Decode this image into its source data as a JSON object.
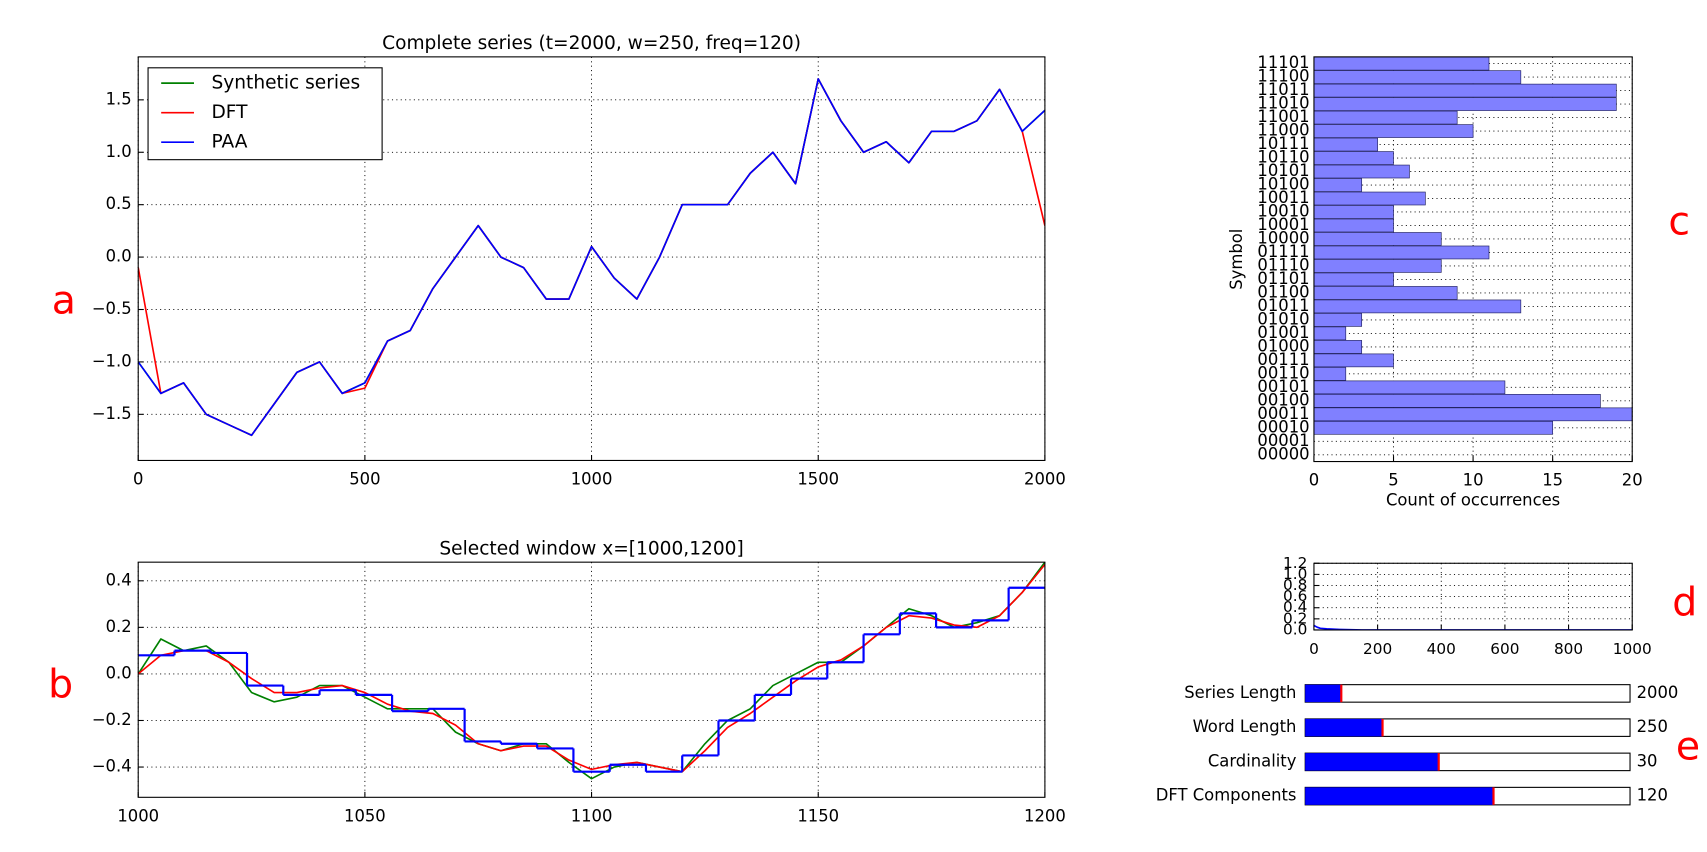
{
  "chart_data": [
    {
      "type": "line",
      "title": "Complete series (t=2000, w=250, freq=120)",
      "x": [
        0,
        50,
        100,
        150,
        200,
        250,
        300,
        350,
        400,
        450,
        500,
        550,
        600,
        650,
        700,
        750,
        800,
        850,
        900,
        950,
        1000,
        1050,
        1100,
        1150,
        1200,
        1250,
        1300,
        1350,
        1400,
        1450,
        1500,
        1550,
        1600,
        1650,
        1700,
        1750,
        1800,
        1850,
        1900,
        1950,
        2000
      ],
      "series": [
        {
          "name": "Synthetic series",
          "color": "#008000",
          "values": [
            -1.0,
            -1.3,
            -1.2,
            -1.5,
            -1.6,
            -1.7,
            -1.4,
            -1.1,
            -1.0,
            -1.3,
            -1.2,
            -0.8,
            -0.7,
            -0.3,
            0.0,
            0.3,
            0.0,
            -0.1,
            -0.4,
            -0.4,
            0.1,
            -0.2,
            -0.4,
            0.0,
            0.5,
            0.5,
            0.5,
            0.8,
            1.0,
            0.7,
            1.7,
            1.3,
            1.0,
            1.1,
            0.9,
            1.2,
            1.2,
            1.3,
            1.6,
            1.2,
            1.4
          ]
        },
        {
          "name": "DFT",
          "color": "#ff0000",
          "values": [
            -0.1,
            -1.3,
            -1.2,
            -1.5,
            -1.6,
            -1.7,
            -1.4,
            -1.1,
            -1.0,
            -1.3,
            -1.25,
            -0.8,
            -0.7,
            -0.3,
            0.0,
            0.3,
            0.0,
            -0.1,
            -0.4,
            -0.4,
            0.1,
            -0.2,
            -0.4,
            0.0,
            0.5,
            0.5,
            0.5,
            0.8,
            1.0,
            0.7,
            1.7,
            1.3,
            1.0,
            1.1,
            0.9,
            1.2,
            1.2,
            1.3,
            1.6,
            1.2,
            0.3
          ]
        },
        {
          "name": "PAA",
          "color": "#0000ff",
          "values": [
            -1.0,
            -1.3,
            -1.2,
            -1.5,
            -1.6,
            -1.7,
            -1.4,
            -1.1,
            -1.0,
            -1.3,
            -1.2,
            -0.8,
            -0.7,
            -0.3,
            0.0,
            0.3,
            0.0,
            -0.1,
            -0.4,
            -0.4,
            0.1,
            -0.2,
            -0.4,
            0.0,
            0.5,
            0.5,
            0.5,
            0.8,
            1.0,
            0.7,
            1.7,
            1.3,
            1.0,
            1.1,
            0.9,
            1.2,
            1.2,
            1.3,
            1.6,
            1.2,
            1.4
          ]
        }
      ],
      "xlim": [
        0,
        2000
      ],
      "xticks": [
        0,
        500,
        1000,
        1500,
        2000
      ],
      "ylim": [
        -1.94,
        1.91
      ],
      "yticks": [
        {
          "value": -1.5,
          "label": "−1.5"
        },
        {
          "value": -1.0,
          "label": "−1.0"
        },
        {
          "value": -0.5,
          "label": "−0.5"
        },
        {
          "value": 0,
          "label": "0.0"
        },
        0.5,
        {
          "value": 1.0,
          "label": "1.0"
        },
        1.5
      ],
      "grid": true,
      "legend": "upper left"
    },
    {
      "type": "line",
      "title": "Selected window x=[1000,1200]",
      "x": [
        1000,
        1005,
        1010,
        1015,
        1020,
        1025,
        1030,
        1035,
        1040,
        1045,
        1050,
        1055,
        1060,
        1065,
        1070,
        1075,
        1080,
        1085,
        1090,
        1095,
        1100,
        1105,
        1110,
        1115,
        1120,
        1125,
        1130,
        1135,
        1140,
        1145,
        1150,
        1155,
        1160,
        1165,
        1170,
        1175,
        1180,
        1185,
        1190,
        1195,
        1200
      ],
      "series": [
        {
          "name": "Synthetic series",
          "color": "#008000",
          "values": [
            0.0,
            0.15,
            0.1,
            0.12,
            0.05,
            -0.08,
            -0.12,
            -0.1,
            -0.05,
            -0.05,
            -0.1,
            -0.15,
            -0.15,
            -0.15,
            -0.25,
            -0.3,
            -0.33,
            -0.3,
            -0.3,
            -0.38,
            -0.45,
            -0.4,
            -0.38,
            -0.4,
            -0.42,
            -0.3,
            -0.2,
            -0.15,
            -0.05,
            0.0,
            0.05,
            0.05,
            0.12,
            0.2,
            0.28,
            0.25,
            0.2,
            0.22,
            0.25,
            0.35,
            0.48
          ]
        },
        {
          "name": "DFT",
          "color": "#ff0000",
          "values": [
            0.0,
            0.08,
            0.1,
            0.1,
            0.05,
            -0.02,
            -0.08,
            -0.08,
            -0.06,
            -0.05,
            -0.08,
            -0.13,
            -0.16,
            -0.17,
            -0.22,
            -0.3,
            -0.33,
            -0.31,
            -0.31,
            -0.37,
            -0.41,
            -0.39,
            -0.38,
            -0.4,
            -0.42,
            -0.33,
            -0.23,
            -0.17,
            -0.1,
            -0.03,
            0.03,
            0.06,
            0.12,
            0.2,
            0.25,
            0.24,
            0.21,
            0.2,
            0.25,
            0.35,
            0.47
          ]
        },
        {
          "name": "PAA",
          "color": "#0000ff",
          "steps": true,
          "x": [
            1000,
            1008,
            1016,
            1024,
            1032,
            1040,
            1048,
            1056,
            1064,
            1072,
            1080,
            1088,
            1096,
            1104,
            1112,
            1120,
            1128,
            1136,
            1144,
            1152,
            1160,
            1168,
            1176,
            1184,
            1192,
            1200
          ],
          "values": [
            0.08,
            0.1,
            0.09,
            -0.05,
            -0.09,
            -0.07,
            -0.09,
            -0.16,
            -0.15,
            -0.29,
            -0.3,
            -0.32,
            -0.42,
            -0.39,
            -0.42,
            -0.35,
            -0.2,
            -0.09,
            -0.02,
            0.05,
            0.17,
            0.26,
            0.2,
            0.23,
            0.37,
            0.37
          ]
        }
      ],
      "xlim": [
        1000,
        1200
      ],
      "xticks": [
        1000,
        1050,
        1100,
        1150,
        1200
      ],
      "ylim": [
        -0.53,
        0.48
      ],
      "yticks": [
        {
          "value": -0.4,
          "label": "−0.4"
        },
        {
          "value": -0.2,
          "label": "−0.2"
        },
        {
          "value": 0,
          "label": "0.0"
        },
        0.2,
        0.4
      ],
      "grid": true
    },
    {
      "type": "barh",
      "xlabel": "Count of occurrences",
      "ylabel": "Symbol",
      "categories": [
        "00000",
        "00001",
        "00010",
        "00011",
        "00100",
        "00101",
        "00110",
        "00111",
        "01000",
        "01001",
        "01010",
        "01011",
        "01100",
        "01101",
        "01110",
        "01111",
        "10000",
        "10001",
        "10010",
        "10011",
        "10100",
        "10101",
        "10110",
        "10111",
        "11000",
        "11001",
        "11010",
        "11011",
        "11100",
        "11101"
      ],
      "values": [
        0,
        0,
        15,
        20,
        18,
        12,
        2,
        5,
        3,
        2,
        3,
        13,
        9,
        5,
        8,
        11,
        8,
        5,
        5,
        7,
        3,
        6,
        5,
        4,
        10,
        9,
        19,
        19,
        13,
        11
      ],
      "color": "#8080ff",
      "xlim": [
        0,
        20
      ],
      "xticks": [
        0,
        5,
        10,
        15,
        20
      ],
      "grid": true
    },
    {
      "type": "line",
      "x": [
        0,
        10,
        20,
        40,
        80,
        150,
        300,
        1000
      ],
      "series": [
        {
          "color": "#0000ff",
          "values": [
            0.08,
            0.05,
            0.03,
            0.02,
            0.01,
            0.0,
            0.0,
            0.0
          ]
        }
      ],
      "xlim": [
        0,
        1000
      ],
      "xticks": [
        0,
        200,
        400,
        600,
        800,
        1000
      ],
      "ylim": [
        0,
        1.2
      ],
      "yticks": [
        {
          "value": 0,
          "label": "0.0"
        },
        0.2,
        0.4,
        0.6,
        0.8,
        {
          "value": 1.0,
          "label": "1.0"
        },
        1.2
      ],
      "grid": true
    }
  ],
  "sliders": [
    {
      "label": "Series Length",
      "value": 2000,
      "min": 0,
      "max": 18000
    },
    {
      "label": "Word Length",
      "value": 250,
      "min": 0,
      "max": 1050
    },
    {
      "label": "Cardinality",
      "value": 30,
      "min": 0,
      "max": 73
    },
    {
      "label": "DFT Components",
      "value": 120,
      "min": 0,
      "max": 207
    }
  ],
  "panel_labels": [
    "a",
    "b",
    "c",
    "d",
    "e"
  ]
}
